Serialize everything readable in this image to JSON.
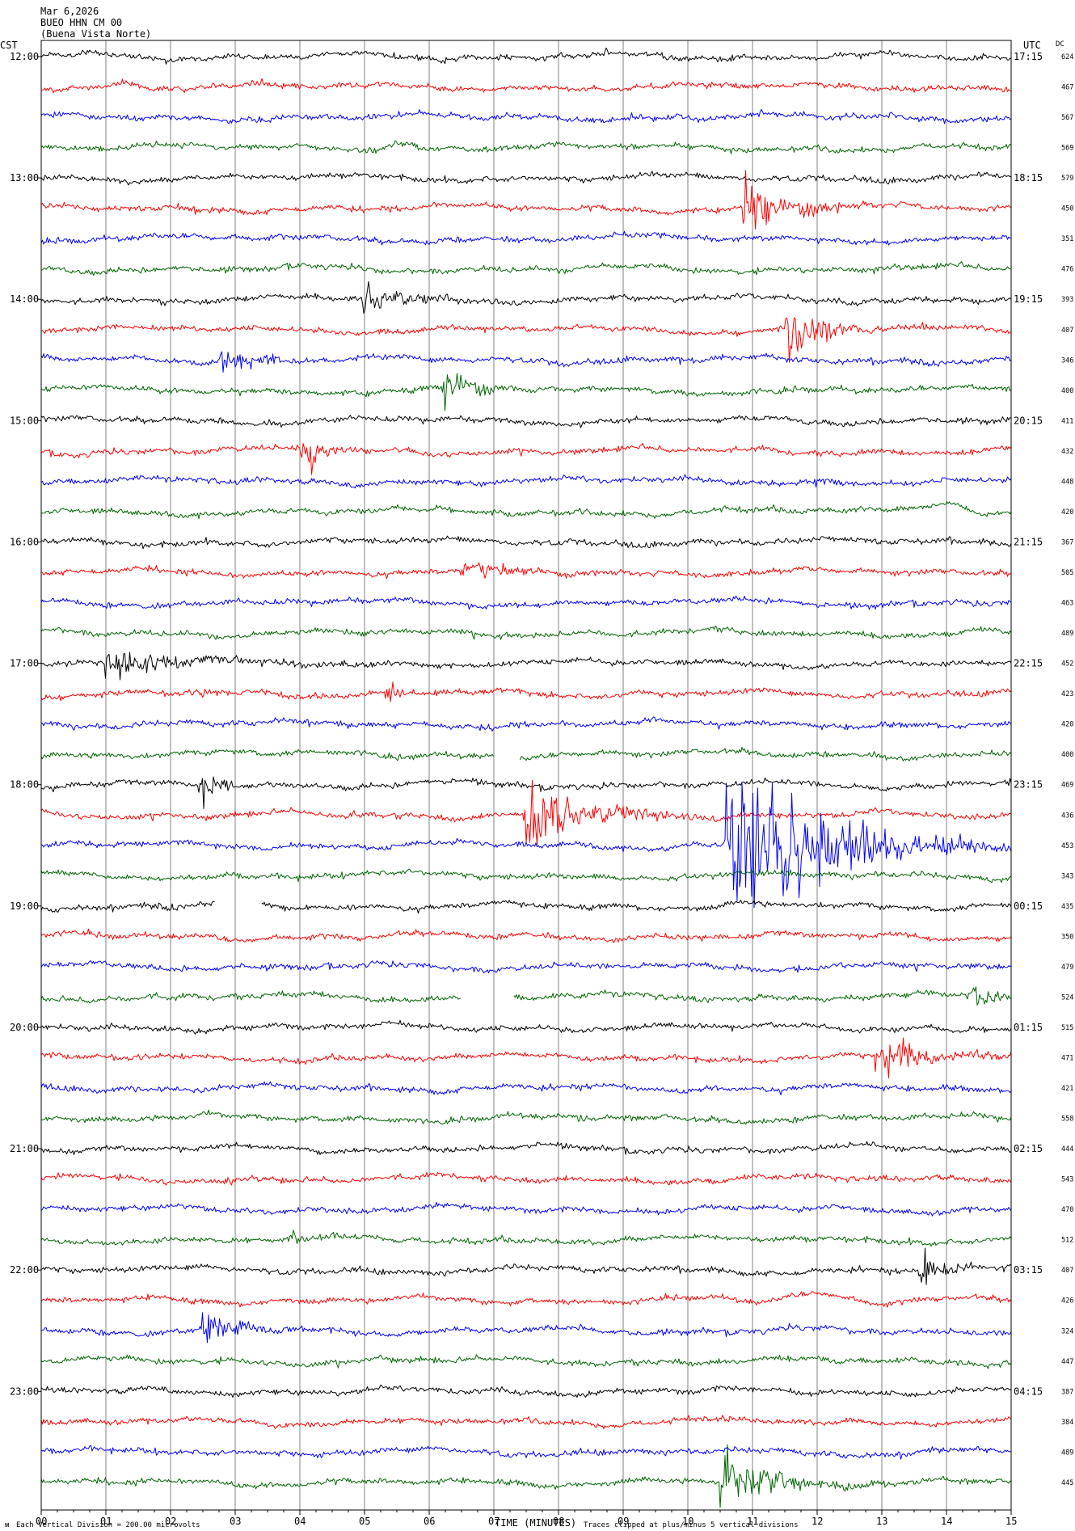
{
  "header": {
    "date": "Mar 6,2026",
    "station": "BUEO HHN CM 00",
    "location": "(Buena Vista Norte)"
  },
  "axis": {
    "left_zone": "CST",
    "right_zone": "UTC",
    "dc_label": "DC",
    "xlabel": "TIME (MINUTES)",
    "x_ticks": [
      "00",
      "01",
      "02",
      "03",
      "04",
      "05",
      "06",
      "07",
      "08",
      "09",
      "10",
      "11",
      "12",
      "13",
      "14",
      "15"
    ]
  },
  "footer": {
    "scale_text": "Each Vertical Division =  200.00 microvolts",
    "clip_text": "Traces clipped at plus/minus 5 vertical divisions"
  },
  "colors": {
    "trace_cycle": [
      "#000000",
      "#ff0000",
      "#0000ff",
      "#006400"
    ],
    "gridline": "#808080",
    "border": "#000000"
  },
  "chart_data": {
    "type": "line",
    "subtype": "helicorder",
    "minutes_per_row": 15,
    "x_range_minutes": [
      0,
      15
    ],
    "row_count": 48,
    "left_hour_labels": [
      "12:00",
      "13:00",
      "14:00",
      "15:00",
      "16:00",
      "17:00",
      "18:00",
      "19:00",
      "20:00",
      "21:00",
      "22:00",
      "23:00"
    ],
    "right_hour_labels": [
      "17:15",
      "18:15",
      "19:15",
      "20:15",
      "21:15",
      "22:15",
      "23:15",
      "00:15",
      "01:15",
      "02:15",
      "03:15",
      "04:15"
    ],
    "dc_offsets": [
      624,
      467,
      567,
      569,
      579,
      450,
      351,
      476,
      393,
      407,
      346,
      400,
      411,
      432,
      448,
      420,
      367,
      505,
      463,
      489,
      452,
      423,
      420,
      400,
      469,
      436,
      453,
      343,
      435,
      350,
      479,
      524,
      515,
      471,
      421,
      558,
      444,
      543,
      470,
      512,
      407,
      426,
      324,
      447,
      387,
      384,
      489,
      445
    ],
    "events": [
      {
        "row": 0,
        "minute": 1.9,
        "amp": 0.25,
        "dur": 0.4
      },
      {
        "row": 1,
        "minute": 1.3,
        "amp": 0.5,
        "dur": 0.8,
        "kind": "wave"
      },
      {
        "row": 3,
        "minute": 5.5,
        "amp": 0.6,
        "dur": 0.8,
        "kind": "wave"
      },
      {
        "row": 5,
        "minute": 10.85,
        "amp": 3.0,
        "dur": 1.3
      },
      {
        "row": 5,
        "minute": 2.1,
        "amp": 0.4,
        "dur": 0.2
      },
      {
        "row": 7,
        "minute": 12.9,
        "amp": 0.6,
        "dur": 0.2
      },
      {
        "row": 8,
        "minute": 5.0,
        "amp": 1.8,
        "dur": 1.0
      },
      {
        "row": 9,
        "minute": 11.55,
        "amp": 2.8,
        "dur": 1.0
      },
      {
        "row": 10,
        "minute": 2.8,
        "amp": 1.4,
        "dur": 0.9
      },
      {
        "row": 10,
        "minute": 9.8,
        "amp": 0.35,
        "dur": 0.3
      },
      {
        "row": 10,
        "minute": 13.6,
        "amp": 0.35,
        "dur": 0.4
      },
      {
        "row": 11,
        "minute": 6.25,
        "amp": 3.5,
        "dur": 0.6
      },
      {
        "row": 13,
        "minute": 4.0,
        "amp": 2.2,
        "dur": 0.7
      },
      {
        "row": 14,
        "minute": 11.9,
        "amp": 0.5,
        "dur": 0.8
      },
      {
        "row": 15,
        "minute": 14.0,
        "amp": 1.2,
        "dur": 1.0,
        "kind": "wave"
      },
      {
        "row": 17,
        "minute": 6.5,
        "amp": 0.9,
        "dur": 2.2
      },
      {
        "row": 19,
        "minute": 5.0,
        "amp": 0.4,
        "dur": 0.3
      },
      {
        "row": 19,
        "minute": 7.1,
        "amp": 0.3,
        "dur": 0.3
      },
      {
        "row": 20,
        "minute": 1.0,
        "amp": 1.2,
        "dur": 2.6
      },
      {
        "row": 21,
        "minute": 2.5,
        "amp": 0.5,
        "dur": 0.4
      },
      {
        "row": 21,
        "minute": 5.35,
        "amp": 1.4,
        "dur": 0.3
      },
      {
        "row": 21,
        "minute": 6.1,
        "amp": 0.5,
        "dur": 0.8
      },
      {
        "row": 24,
        "minute": 2.45,
        "amp": 1.5,
        "dur": 0.7
      },
      {
        "row": 25,
        "minute": 7.5,
        "amp": 3.2,
        "dur": 1.6
      },
      {
        "row": 25,
        "minute": 4.7,
        "amp": 0.5,
        "dur": 0.3
      },
      {
        "row": 26,
        "minute": 10.6,
        "amp": 8.0,
        "dur": 2.5
      },
      {
        "row": 28,
        "minute": 1.8,
        "amp": 0.35,
        "dur": 1.2
      },
      {
        "row": 31,
        "minute": 14.35,
        "amp": 1.3,
        "dur": 0.6
      },
      {
        "row": 33,
        "minute": 12.9,
        "amp": 2.0,
        "dur": 1.4
      },
      {
        "row": 35,
        "minute": 8.3,
        "amp": 0.35,
        "dur": 0.4
      },
      {
        "row": 37,
        "minute": 2.9,
        "amp": 0.4,
        "dur": 0.3
      },
      {
        "row": 39,
        "minute": 3.9,
        "amp": 0.5,
        "dur": 0.4
      },
      {
        "row": 40,
        "minute": 13.6,
        "amp": 2.2,
        "dur": 0.6
      },
      {
        "row": 41,
        "minute": 12.0,
        "amp": 0.9,
        "dur": 1.4,
        "kind": "wave"
      },
      {
        "row": 42,
        "minute": 2.5,
        "amp": 1.8,
        "dur": 1.1
      },
      {
        "row": 47,
        "minute": 10.5,
        "amp": 2.5,
        "dur": 1.6
      }
    ],
    "gaps": [
      {
        "row": 23,
        "from": 7.0,
        "to": 7.4
      },
      {
        "row": 28,
        "from": 2.7,
        "to": 3.4
      },
      {
        "row": 31,
        "from": 6.5,
        "to": 7.3
      }
    ]
  }
}
